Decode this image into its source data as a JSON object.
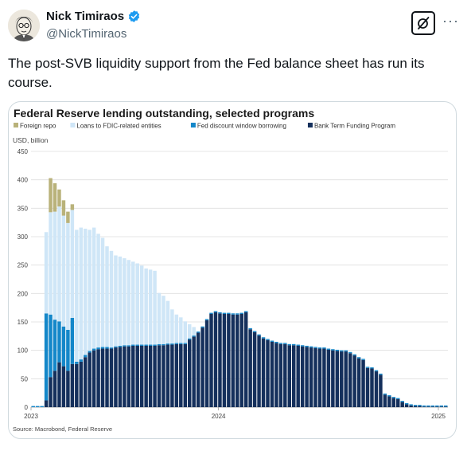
{
  "tweet": {
    "display_name": "Nick Timiraos",
    "handle": "@NickTimiraos",
    "text": "The post-SVB liquidity support from the Fed balance sheet has run its course.",
    "more_label": "···"
  },
  "colors": {
    "foreign_repo": "#b9b27a",
    "fdic_loans": "#cfe6f7",
    "discount_window": "#1487c9",
    "btfp": "#15305c",
    "verified_blue": "#1d9bf0"
  },
  "chart_data": {
    "type": "bar",
    "stacked": true,
    "title": "Federal Reserve lending outstanding, selected programs",
    "units_label": "USD, billion",
    "source": "Source: Macrobond, Federal Reserve",
    "ylim": [
      0,
      450
    ],
    "y_ticks": [
      0,
      50,
      100,
      150,
      200,
      250,
      300,
      350,
      400,
      450
    ],
    "x_ticks": [
      "2023",
      "2024",
      "2025"
    ],
    "grid": true,
    "legend_position": "top-left",
    "period_start": "2023-03-08",
    "period_end": "2025-01-01",
    "series": [
      {
        "name": "Foreign repo",
        "values": [
          0,
          0,
          0,
          0,
          60,
          50,
          30,
          27,
          20,
          10,
          0,
          0,
          0,
          0,
          0,
          0,
          0,
          0,
          0,
          0,
          0,
          0,
          0,
          0,
          0,
          0,
          0,
          0,
          0,
          0,
          0,
          0,
          0,
          0,
          0,
          0,
          0,
          0,
          0,
          0,
          0,
          0,
          0,
          0,
          0,
          0,
          0,
          0,
          0,
          0,
          0,
          0,
          0,
          0,
          0,
          0,
          0,
          0,
          0,
          0,
          0,
          0,
          0,
          0,
          0,
          0,
          0,
          0,
          0,
          0,
          0,
          0,
          0,
          0,
          0,
          0,
          0,
          0,
          0,
          0,
          0,
          0,
          0,
          0,
          0,
          0,
          0,
          0,
          0,
          0,
          0,
          0,
          0,
          0,
          0,
          0
        ]
      },
      {
        "name": "Loans to FDIC-related entities",
        "values": [
          0,
          0,
          0,
          143,
          180,
          190,
          202,
          195,
          188,
          190,
          232,
          232,
          222,
          213,
          213,
          200,
          192,
          177,
          170,
          160,
          157,
          153,
          150,
          146,
          143,
          139,
          134,
          132,
          130,
          90,
          85,
          75,
          60,
          50,
          45,
          38,
          25,
          15,
          0,
          0,
          0,
          0,
          0,
          0,
          0,
          0,
          0,
          0,
          0,
          0,
          0,
          0,
          0,
          0,
          0,
          0,
          0,
          0,
          0,
          0,
          0,
          0,
          0,
          0,
          0,
          0,
          0,
          0,
          0,
          0,
          0,
          0,
          0,
          0,
          0,
          0,
          0,
          0,
          0,
          0,
          0,
          0,
          0,
          0,
          0,
          0,
          0,
          0,
          0,
          0,
          0,
          0,
          0,
          0,
          0,
          0,
          0
        ]
      },
      {
        "name": "Fed discount window borrowing",
        "values": [
          2,
          2,
          2,
          153,
          110,
          90,
          72,
          70,
          72,
          81,
          4,
          4,
          4,
          3,
          3,
          3,
          3,
          3,
          2,
          2,
          2,
          2,
          2,
          2,
          2,
          2,
          2,
          2,
          2,
          2,
          2,
          2,
          2,
          2,
          2,
          2,
          2,
          2,
          2,
          2,
          2,
          2,
          2,
          2,
          2,
          2,
          2,
          2,
          2,
          2,
          2,
          2,
          2,
          2,
          2,
          2,
          2,
          2,
          2,
          2,
          2,
          2,
          2,
          2,
          2,
          2,
          2,
          2,
          2,
          2,
          2,
          2,
          2,
          2,
          2,
          2,
          2,
          2,
          2,
          2,
          2,
          2,
          2,
          2,
          2,
          2,
          2,
          2,
          2,
          2,
          2,
          2,
          2,
          2,
          2,
          2
        ]
      },
      {
        "name": "Bank Term Funding Program",
        "values": [
          0,
          0,
          0,
          12,
          53,
          64,
          79,
          72,
          64,
          76,
          76,
          80,
          88,
          96,
          100,
          102,
          103,
          103,
          103,
          105,
          106,
          107,
          107,
          108,
          108,
          108,
          108,
          108,
          108,
          109,
          109,
          110,
          110,
          111,
          111,
          111,
          119,
          124,
          131,
          140,
          153,
          164,
          167,
          165,
          164,
          164,
          163,
          163,
          164,
          167,
          137,
          132,
          126,
          121,
          118,
          115,
          113,
          111,
          111,
          109,
          109,
          108,
          107,
          106,
          105,
          104,
          103,
          103,
          101,
          100,
          99,
          98,
          98,
          95,
          91,
          86,
          83,
          69,
          68,
          63,
          57,
          22,
          19,
          16,
          14,
          9,
          5,
          3,
          2,
          2,
          1,
          1,
          1,
          1,
          1,
          1
        ]
      }
    ]
  }
}
